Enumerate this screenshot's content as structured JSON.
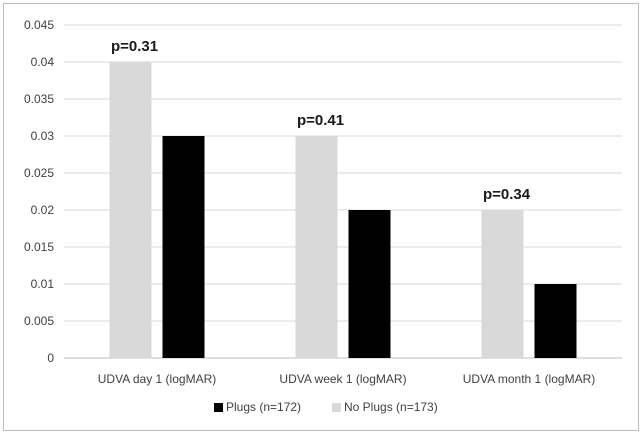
{
  "chart_data": {
    "type": "bar",
    "categories": [
      "UDVA day 1 (logMAR)",
      "UDVA week 1 (logMAR)",
      "UDVA month 1 (logMAR)"
    ],
    "series": [
      {
        "name": "No Plugs (n=173)",
        "values": [
          0.04,
          0.03,
          0.02
        ],
        "color": "#d9d9d9"
      },
      {
        "name": "Plugs (n=172)",
        "values": [
          0.03,
          0.02,
          0.01
        ],
        "color": "#000000"
      }
    ],
    "legend_order": [
      1,
      0
    ],
    "annotations": [
      "p=0.31",
      "p=0.41",
      "p=0.34"
    ],
    "ylim": [
      0,
      0.045
    ],
    "yticks": [
      "0",
      "0.005",
      "0.01",
      "0.015",
      "0.02",
      "0.025",
      "0.03",
      "0.035",
      "0.04",
      "0.045"
    ],
    "ytick_values": [
      0,
      0.005,
      0.01,
      0.015,
      0.02,
      0.025,
      0.03,
      0.035,
      0.04,
      0.045
    ],
    "grid": true,
    "legend_position": "bottom",
    "title": "",
    "xlabel": "",
    "ylabel": ""
  }
}
